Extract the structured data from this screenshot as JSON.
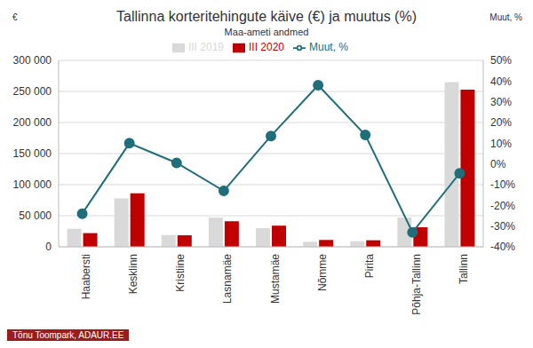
{
  "chart_data": {
    "type": "bar",
    "title": "Tallinna korteritehingute käive (€) ja muutus (%)",
    "subtitle": "Maa-ameti andmed",
    "y_label": "€",
    "y2_label": "Muut, %",
    "annotations": [
      "Tõnu Toompark, ADAUR.EE"
    ],
    "categories": [
      "Haabersti",
      "Kesklinn",
      "Kristiine",
      "Lasnamäe",
      "Mustamäe",
      "Nõmme",
      "Pirita",
      "Põhja-Tallinn",
      "Tallinn"
    ],
    "series": [
      {
        "name": "III 2019",
        "type": "bar",
        "color": "#d9d9d9",
        "values": [
          29000,
          78000,
          19000,
          47000,
          30000,
          8000,
          9000,
          47000,
          265000
        ]
      },
      {
        "name": "III 2020",
        "type": "bar",
        "color": "#c00000",
        "values": [
          22000,
          86000,
          18500,
          41000,
          34000,
          11000,
          10500,
          31500,
          253000
        ]
      },
      {
        "name": "Muut, %",
        "type": "line",
        "axis": "y2",
        "color": "#1f6e7a",
        "marker": "circle",
        "line_style": "solid",
        "values": [
          -24,
          10,
          0.5,
          -13,
          13.5,
          38,
          14,
          -33,
          -4.5
        ]
      }
    ],
    "ylim": [
      0,
      300000
    ],
    "yticks": [
      0,
      {
        "value": 50000,
        "label": "50 000"
      },
      {
        "value": 100000,
        "label": "100 000"
      },
      {
        "value": 150000,
        "label": "150 000"
      },
      {
        "value": 200000,
        "label": "200 000"
      },
      {
        "value": 250000,
        "label": "250 000"
      },
      {
        "value": 300000,
        "label": "300 000"
      }
    ],
    "y2lim": [
      -40,
      50
    ],
    "y2ticks": [
      {
        "value": -40,
        "label": "-40%"
      },
      {
        "value": -30,
        "label": "-30%"
      },
      {
        "value": -20,
        "label": "-20%"
      },
      {
        "value": -10,
        "label": "-10%"
      },
      {
        "value": 0,
        "label": "0%"
      },
      {
        "value": 10,
        "label": "10%"
      },
      {
        "value": 20,
        "label": "20%"
      },
      {
        "value": 30,
        "label": "30%"
      },
      {
        "value": 40,
        "label": "40%"
      },
      {
        "value": 50,
        "label": "50%"
      }
    ],
    "grid": true,
    "legend": "top"
  }
}
